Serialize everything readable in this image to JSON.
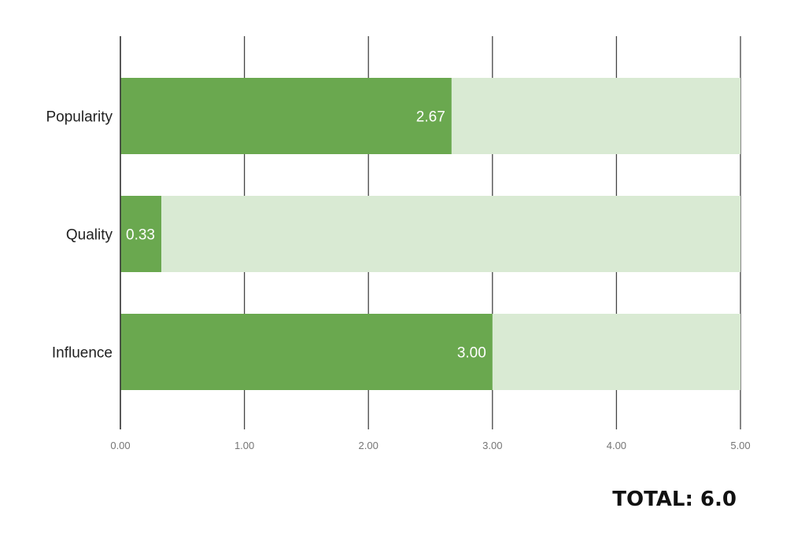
{
  "chart_data": {
    "type": "bar",
    "orientation": "horizontal",
    "categories": [
      "Popularity",
      "Quality",
      "Influence"
    ],
    "values": [
      2.67,
      0.33,
      3.0
    ],
    "data_labels": [
      "2.67",
      "0.33",
      "3.00"
    ],
    "max_value": 5.0,
    "xlim": [
      0,
      5
    ],
    "x_ticks": [
      0,
      1,
      2,
      3,
      4,
      5
    ],
    "x_tick_labels": [
      "0.00",
      "1.00",
      "2.00",
      "3.00",
      "4.00",
      "5.00"
    ],
    "grid": true,
    "legend": "none",
    "colors": {
      "bar": "#6aa84f",
      "track": "#d9ead3",
      "grid": "#444444"
    }
  },
  "total": {
    "text": "TOTAL: 6.0"
  }
}
